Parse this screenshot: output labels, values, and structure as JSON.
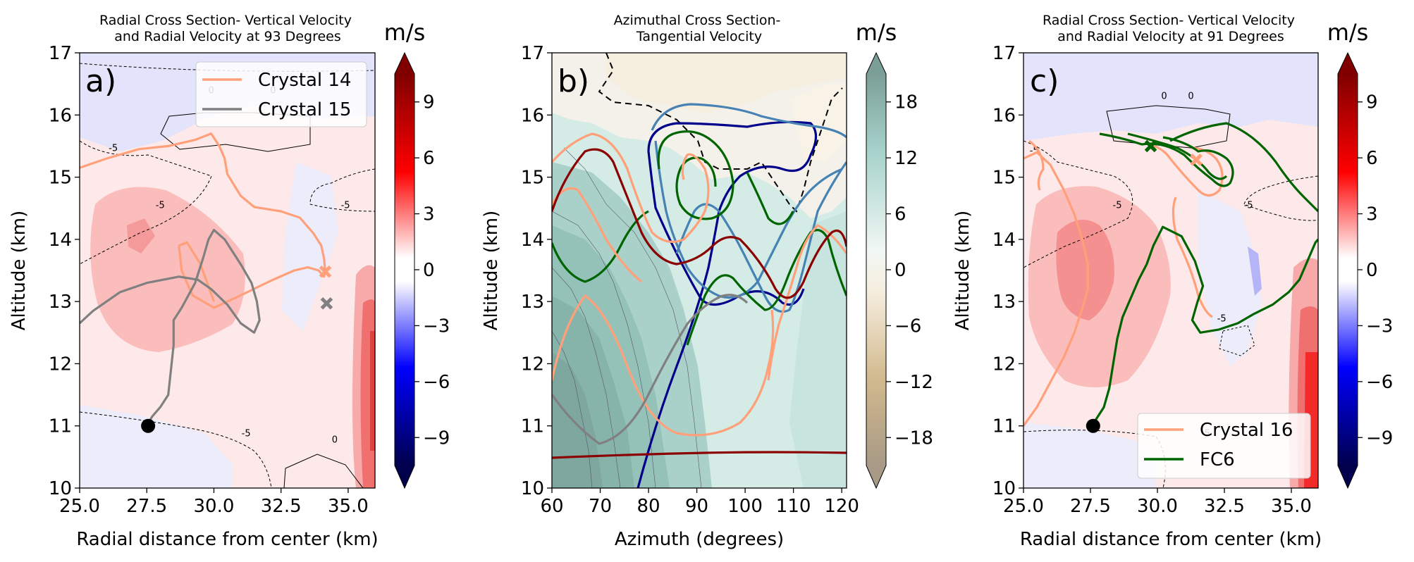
{
  "figure": {
    "colorbar_unit": "m/s"
  },
  "chart_data": [
    {
      "type": "contour",
      "panel_label": "a)",
      "title": "Radial Cross Section- Vertical Velocity\nand Radial Velocity at 93 Degrees",
      "xlabel": "Radial distance from center (km)",
      "ylabel": "Altitude (km)",
      "xlim": [
        25.0,
        36.0
      ],
      "ylim": [
        10,
        17
      ],
      "xticks": [
        25.0,
        27.5,
        30.0,
        32.5,
        35.0
      ],
      "xtick_labels": [
        "25.0",
        "27.5",
        "30.0",
        "32.5",
        "35.0"
      ],
      "yticks": [
        10,
        11,
        12,
        13,
        14,
        15,
        16,
        17
      ],
      "colorbar": {
        "ticks": [
          -9,
          -6,
          -3,
          0,
          3,
          6,
          9
        ],
        "tick_labels": [
          "−9",
          "−6",
          "−3",
          "0",
          "3",
          "6",
          "9"
        ],
        "range": [
          -10.5,
          10.5
        ],
        "colormap": "seismic"
      },
      "contour_labels": [
        {
          "text": "0",
          "x": 29.9,
          "y": 16.35
        },
        {
          "text": "0",
          "x": 32.2,
          "y": 16.35
        },
        {
          "text": "-5",
          "x": 26.25,
          "y": 15.42
        },
        {
          "text": "-5",
          "x": 28.0,
          "y": 14.5
        },
        {
          "text": "-5",
          "x": 34.9,
          "y": 14.5
        },
        {
          "text": "-5",
          "x": 31.2,
          "y": 10.83
        },
        {
          "text": "0",
          "x": 34.5,
          "y": 10.73
        }
      ],
      "legend": {
        "position": "upper right",
        "entries": [
          {
            "name": "Crystal 14",
            "color": "#ffa07a"
          },
          {
            "name": "Crystal 15",
            "color": "#808080"
          }
        ]
      },
      "series": [
        {
          "name": "Crystal 14",
          "color": "#ffa07a",
          "x": [
            25.0,
            26.0,
            27.2,
            28.3,
            29.3,
            29.9,
            30.2,
            30.4,
            30.5,
            31.0,
            31.5,
            32.5,
            33.2,
            33.7,
            34.0,
            34.1,
            34.15,
            34.1,
            33.9,
            33.5,
            33.0,
            32.2,
            31.0,
            30.0,
            29.2,
            28.8,
            28.7,
            29.0,
            29.5,
            30.0
          ],
          "y": [
            15.15,
            15.3,
            15.45,
            15.5,
            15.6,
            15.7,
            15.5,
            15.3,
            15.05,
            14.7,
            14.52,
            14.45,
            14.35,
            14.1,
            13.9,
            13.7,
            13.48,
            13.4,
            13.5,
            13.55,
            13.5,
            13.35,
            13.1,
            12.9,
            13.1,
            13.5,
            13.9,
            13.95,
            13.6,
            13.0
          ],
          "end_marker": {
            "x": 34.15,
            "y": 13.48,
            "shape": "x"
          }
        },
        {
          "name": "Crystal 15",
          "color": "#808080",
          "x": [
            27.5,
            27.7,
            28.0,
            28.3,
            28.4,
            28.5,
            28.5,
            28.8,
            29.3,
            29.6,
            29.8,
            30.0,
            30.4,
            31.0,
            31.4,
            31.6,
            31.7,
            31.5,
            31.0,
            30.5,
            29.9,
            29.4,
            28.7,
            27.5,
            26.5,
            25.5,
            25.0
          ],
          "y": [
            11.0,
            11.15,
            11.3,
            11.5,
            11.9,
            12.3,
            12.7,
            12.9,
            13.3,
            13.7,
            14.0,
            14.15,
            14.0,
            13.6,
            13.3,
            13.0,
            12.7,
            12.5,
            12.65,
            12.95,
            13.2,
            13.35,
            13.4,
            13.3,
            13.15,
            12.85,
            12.65
          ],
          "end_marker": {
            "x": 34.2,
            "y": 12.97,
            "shape": "x"
          }
        }
      ],
      "start_marker": {
        "x": 27.55,
        "y": 11.0
      }
    },
    {
      "type": "contour",
      "panel_label": "b)",
      "title": "Azimuthal Cross Section-\nTangential Velocity",
      "xlabel": "Azimuth (degrees)",
      "ylabel": "Altitude (km)",
      "xlim": [
        60,
        121
      ],
      "ylim": [
        10,
        17
      ],
      "xticks": [
        60,
        70,
        80,
        90,
        100,
        110,
        120
      ],
      "xtick_labels": [
        "60",
        "70",
        "80",
        "90",
        "100",
        "110",
        "120"
      ],
      "yticks": [
        10,
        11,
        12,
        13,
        14,
        15,
        16,
        17
      ],
      "colorbar": {
        "ticks": [
          -18,
          -12,
          -6,
          0,
          6,
          12,
          18
        ],
        "tick_labels": [
          "−18",
          "−12",
          "−6",
          "0",
          "6",
          "12",
          "18"
        ],
        "range": [
          -21,
          21
        ],
        "colormap": "BrBG"
      },
      "series": [
        {
          "name": "dark blue flight track",
          "color": "#00008b"
        },
        {
          "name": "steel blue flight track",
          "color": "#4682b4"
        },
        {
          "name": "green flight track",
          "color": "#006400"
        },
        {
          "name": "salmon flight track",
          "color": "#ffa07a"
        },
        {
          "name": "dark red flight track",
          "color": "#8b0000"
        },
        {
          "name": "gray flight track",
          "color": "#808080"
        }
      ]
    },
    {
      "type": "contour",
      "panel_label": "c)",
      "title": "Radial Cross Section- Vertical Velocity\nand Radial Velocity at 91 Degrees",
      "xlabel": "Radial distance from center (km)",
      "ylabel": "Altitude (km)",
      "xlim": [
        25.0,
        36.0
      ],
      "ylim": [
        10,
        17
      ],
      "xticks": [
        25.0,
        27.5,
        30.0,
        32.5,
        35.0
      ],
      "xtick_labels": [
        "25.0",
        "27.5",
        "30.0",
        "32.5",
        "35.0"
      ],
      "yticks": [
        10,
        11,
        12,
        13,
        14,
        15,
        16,
        17
      ],
      "colorbar": {
        "ticks": [
          -9,
          -6,
          -3,
          0,
          3,
          6,
          9
        ],
        "tick_labels": [
          "−9",
          "−6",
          "−3",
          "0",
          "3",
          "6",
          "9"
        ],
        "range": [
          -10.5,
          10.5
        ],
        "colormap": "seismic"
      },
      "contour_labels": [
        {
          "text": "0",
          "x": 30.25,
          "y": 16.26
        },
        {
          "text": "0",
          "x": 31.25,
          "y": 16.26
        },
        {
          "text": "-5",
          "x": 25.4,
          "y": 15.38
        },
        {
          "text": "-5",
          "x": 28.5,
          "y": 14.5
        },
        {
          "text": "-5",
          "x": 33.4,
          "y": 14.5
        },
        {
          "text": "-5",
          "x": 32.4,
          "y": 12.68
        },
        {
          "text": "-5",
          "x": 31.8,
          "y": 10.83
        }
      ],
      "legend": {
        "position": "lower right",
        "entries": [
          {
            "name": "Crystal 16",
            "color": "#ffa07a"
          },
          {
            "name": "FC6",
            "color": "#006400"
          }
        ]
      },
      "series": [
        {
          "name": "Crystal 16",
          "color": "#ffa07a",
          "x": [
            25.0,
            25.5,
            26.0,
            26.5,
            26.9,
            27.2,
            27.4,
            27.4,
            27.2,
            26.9,
            26.5,
            26.0,
            25.5,
            25.0
          ],
          "y": [
            11.0,
            11.3,
            11.7,
            12.1,
            12.5,
            12.9,
            13.2,
            13.6,
            14.0,
            14.4,
            14.8,
            15.2,
            15.4,
            15.3
          ],
          "end_marker": {
            "x": 31.45,
            "y": 15.28,
            "shape": "x"
          }
        },
        {
          "name": "FC6",
          "color": "#006400",
          "x": [
            27.55,
            28.0,
            28.2,
            28.35,
            28.5,
            28.7,
            29.0,
            29.3,
            29.6,
            29.85,
            30.2,
            30.9,
            31.4,
            31.7,
            31.5,
            31.3,
            31.6,
            32.3,
            33.0,
            33.6,
            34.3,
            34.9,
            35.3,
            35.5,
            35.7,
            35.9,
            36.0
          ],
          "y": [
            11.0,
            11.3,
            11.6,
            12.0,
            12.4,
            12.75,
            13.05,
            13.35,
            13.6,
            13.9,
            14.2,
            14.05,
            13.65,
            13.25,
            13.0,
            12.7,
            12.5,
            12.55,
            12.65,
            12.8,
            12.95,
            13.15,
            13.35,
            13.55,
            13.75,
            13.95,
            14.0
          ],
          "end_marker": {
            "x": 29.75,
            "y": 15.5,
            "shape": "x"
          }
        }
      ],
      "start_marker": {
        "x": 27.6,
        "y": 11.0
      }
    }
  ]
}
